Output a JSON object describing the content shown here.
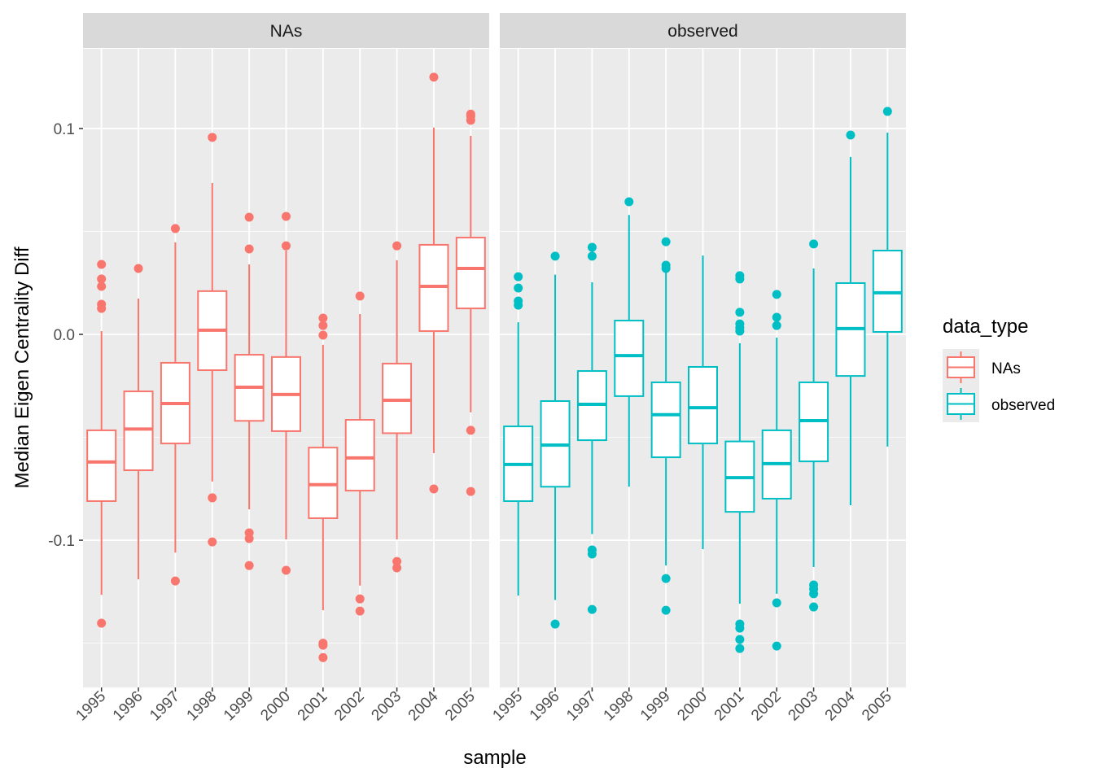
{
  "chart_data": {
    "type": "boxplot",
    "xlabel": "sample",
    "ylabel": "Median Eigen Centrality Diff",
    "ylim": [
      -0.1715,
      0.1387
    ],
    "yticks": [
      0.1,
      0.0,
      -0.1
    ],
    "ytick_labels": [
      "0.1",
      "0.0",
      "-0.1"
    ],
    "grid": true,
    "categories": [
      "1995",
      "1996",
      "1997",
      "1998",
      "1999",
      "2000",
      "2001",
      "2002",
      "2003",
      "2004",
      "2005"
    ],
    "legend": {
      "title": "data_type",
      "position": "right",
      "entries": [
        "NAs",
        "observed"
      ]
    },
    "colors": {
      "NAs": "#F8766D",
      "observed": "#00BFC4"
    },
    "panels": [
      {
        "strip": "NAs",
        "series": "NAs",
        "boxes": [
          {
            "lo": -0.1265,
            "q1": -0.081,
            "med": -0.062,
            "q3": -0.0466,
            "hi": 0.0016,
            "out": [
              0.034,
              0.0269,
              0.0233,
              0.0146,
              0.0126,
              -0.1403
            ]
          },
          {
            "lo": -0.119,
            "q1": -0.066,
            "med": -0.046,
            "q3": -0.0277,
            "hi": 0.0174,
            "out": [
              0.032
            ]
          },
          {
            "lo": -0.106,
            "q1": -0.053,
            "med": -0.0336,
            "q3": -0.0138,
            "hi": 0.0447,
            "out": [
              0.0514,
              -0.1198
            ]
          },
          {
            "lo": -0.0715,
            "q1": -0.0174,
            "med": 0.002,
            "q3": 0.021,
            "hi": 0.0735,
            "out": [
              0.0957,
              -0.0794,
              -0.1008
            ]
          },
          {
            "lo": -0.085,
            "q1": -0.042,
            "med": -0.0257,
            "q3": -0.0099,
            "hi": 0.034,
            "out": [
              0.0569,
              0.0415,
              -0.0964,
              -0.0992,
              -0.1123
            ]
          },
          {
            "lo": -0.0996,
            "q1": -0.047,
            "med": -0.0292,
            "q3": -0.011,
            "hi": 0.0407,
            "out": [
              0.0573,
              0.043,
              -0.1146
            ]
          },
          {
            "lo": -0.134,
            "q1": -0.0893,
            "med": -0.073,
            "q3": -0.055,
            "hi": -0.0051,
            "out": [
              0.0079,
              0.0043,
              -0.0004,
              -0.15,
              -0.151,
              -0.157
            ]
          },
          {
            "lo": -0.122,
            "q1": -0.0759,
            "med": -0.06,
            "q3": -0.0415,
            "hi": 0.0099,
            "out": [
              0.0186,
              -0.1285,
              -0.1344
            ]
          },
          {
            "lo": -0.0996,
            "q1": -0.048,
            "med": -0.032,
            "q3": -0.0142,
            "hi": 0.036,
            "out": [
              0.043,
              -0.1103,
              -0.1134
            ]
          },
          {
            "lo": -0.0577,
            "q1": 0.0016,
            "med": 0.0233,
            "q3": 0.0435,
            "hi": 0.1004,
            "out": [
              0.1249,
              -0.0751
            ]
          },
          {
            "lo": -0.0379,
            "q1": 0.0126,
            "med": 0.032,
            "q3": 0.047,
            "hi": 0.0964,
            "out": [
              0.107,
              0.1059,
              0.104,
              -0.0466,
              -0.0763
            ]
          }
        ]
      },
      {
        "strip": "observed",
        "series": "observed",
        "boxes": [
          {
            "lo": -0.1269,
            "q1": -0.081,
            "med": -0.0632,
            "q3": -0.0447,
            "hi": 0.0059,
            "out": [
              0.028,
              0.0225,
              0.0162,
              0.0142
            ]
          },
          {
            "lo": -0.129,
            "q1": -0.074,
            "med": -0.0538,
            "q3": -0.0324,
            "hi": 0.029,
            "out": [
              0.038,
              -0.1407
            ]
          },
          {
            "lo": -0.097,
            "q1": -0.0514,
            "med": -0.034,
            "q3": -0.0178,
            "hi": 0.0253,
            "out": [
              0.0423,
              0.038,
              -0.1047,
              -0.1067,
              -0.1336
            ]
          },
          {
            "lo": -0.074,
            "q1": -0.03,
            "med": -0.0103,
            "q3": 0.0067,
            "hi": 0.058,
            "out": [
              0.0644
            ]
          },
          {
            "lo": -0.1123,
            "q1": -0.0597,
            "med": -0.039,
            "q3": -0.0233,
            "hi": 0.0344,
            "out": [
              0.045,
              0.0336,
              0.032,
              -0.1186,
              -0.134
            ]
          },
          {
            "lo": -0.1043,
            "q1": -0.053,
            "med": -0.0356,
            "q3": -0.0158,
            "hi": 0.0383,
            "out": []
          },
          {
            "lo": -0.1308,
            "q1": -0.0862,
            "med": -0.0696,
            "q3": -0.052,
            "hi": -0.0043,
            "out": [
              0.0285,
              0.0269,
              0.0107,
              0.0051,
              0.0032,
              0.0016,
              -0.1407,
              -0.1427,
              -0.1482,
              -0.1526
            ]
          },
          {
            "lo": -0.126,
            "q1": -0.0798,
            "med": -0.0628,
            "q3": -0.0466,
            "hi": -0.0016,
            "out": [
              0.0194,
              0.0083,
              0.0043,
              -0.1304,
              -0.1514
            ]
          },
          {
            "lo": -0.113,
            "q1": -0.0617,
            "med": -0.0419,
            "q3": -0.0233,
            "hi": 0.032,
            "out": [
              0.0439,
              -0.1217,
              -0.1237,
              -0.126,
              -0.1324
            ]
          },
          {
            "lo": -0.083,
            "q1": -0.0202,
            "med": 0.0028,
            "q3": 0.0249,
            "hi": 0.0862,
            "out": [
              0.0968
            ]
          },
          {
            "lo": -0.0545,
            "q1": 0.0012,
            "med": 0.0202,
            "q3": 0.0407,
            "hi": 0.098,
            "out": [
              0.1083
            ]
          }
        ]
      }
    ]
  }
}
